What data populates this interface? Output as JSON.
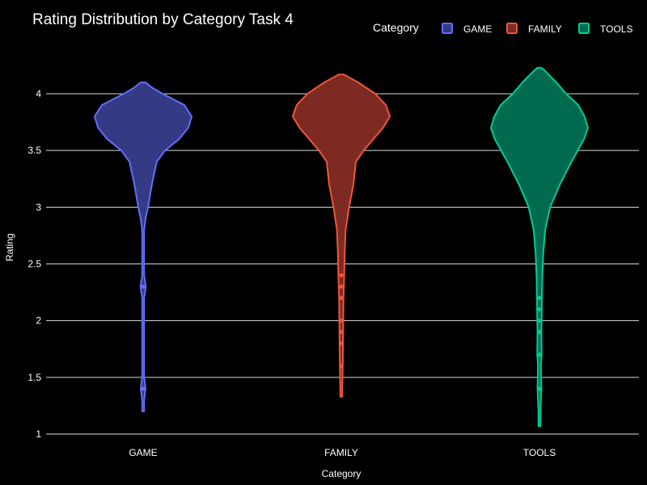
{
  "chart_data": {
    "type": "violin",
    "title": "Rating Distribution by Category Task 4",
    "xlabel": "Category",
    "ylabel": "Rating",
    "ylim": [
      1,
      4.2
    ],
    "yticks": [
      "1",
      "1.5",
      "2",
      "2.5",
      "3",
      "3.5",
      "4"
    ],
    "grid": true,
    "legend": {
      "title": "Category",
      "placement": "top-right"
    },
    "categories": [
      "GAME",
      "FAMILY",
      "TOOLS"
    ],
    "series": [
      {
        "name": "GAME",
        "color": "#636efa",
        "fill": "#353a85",
        "range": [
          1.2,
          4.1
        ],
        "profile": [
          [
            1.2,
            0.01
          ],
          [
            1.3,
            0.015
          ],
          [
            1.4,
            0.05
          ],
          [
            1.5,
            0.02
          ],
          [
            1.7,
            0.008
          ],
          [
            2.0,
            0.008
          ],
          [
            2.2,
            0.02
          ],
          [
            2.3,
            0.055
          ],
          [
            2.4,
            0.02
          ],
          [
            2.6,
            0.01
          ],
          [
            2.8,
            0.02
          ],
          [
            2.9,
            0.05
          ],
          [
            3.0,
            0.1
          ],
          [
            3.2,
            0.18
          ],
          [
            3.4,
            0.28
          ],
          [
            3.5,
            0.45
          ],
          [
            3.6,
            0.74
          ],
          [
            3.7,
            0.93
          ],
          [
            3.8,
            1.0
          ],
          [
            3.9,
            0.85
          ],
          [
            4.0,
            0.4
          ],
          [
            4.05,
            0.2
          ],
          [
            4.1,
            0.05
          ]
        ],
        "points": [
          1.4,
          2.3
        ]
      },
      {
        "name": "FAMILY",
        "color": "#ef553b",
        "fill": "#7d2b22",
        "range": [
          1.33,
          4.17
        ],
        "profile": [
          [
            1.33,
            0.01
          ],
          [
            1.4,
            0.015
          ],
          [
            1.6,
            0.03
          ],
          [
            1.8,
            0.035
          ],
          [
            2.0,
            0.04
          ],
          [
            2.2,
            0.045
          ],
          [
            2.4,
            0.06
          ],
          [
            2.6,
            0.07
          ],
          [
            2.8,
            0.09
          ],
          [
            3.0,
            0.16
          ],
          [
            3.2,
            0.25
          ],
          [
            3.4,
            0.3
          ],
          [
            3.5,
            0.46
          ],
          [
            3.6,
            0.66
          ],
          [
            3.7,
            0.86
          ],
          [
            3.8,
            1.0
          ],
          [
            3.9,
            0.92
          ],
          [
            4.0,
            0.7
          ],
          [
            4.1,
            0.35
          ],
          [
            4.17,
            0.05
          ]
        ],
        "points": [
          1.6,
          1.8,
          1.9,
          2.0,
          2.2,
          2.3,
          2.4
        ]
      },
      {
        "name": "TOOLS",
        "color": "#00cc96",
        "fill": "#006a4f",
        "range": [
          1.07,
          4.23
        ],
        "profile": [
          [
            1.07,
            0.01
          ],
          [
            1.2,
            0.015
          ],
          [
            1.4,
            0.04
          ],
          [
            1.6,
            0.03
          ],
          [
            1.7,
            0.045
          ],
          [
            1.9,
            0.04
          ],
          [
            2.0,
            0.045
          ],
          [
            2.2,
            0.05
          ],
          [
            2.4,
            0.06
          ],
          [
            2.6,
            0.08
          ],
          [
            2.8,
            0.12
          ],
          [
            3.0,
            0.22
          ],
          [
            3.2,
            0.42
          ],
          [
            3.4,
            0.66
          ],
          [
            3.6,
            0.92
          ],
          [
            3.7,
            1.0
          ],
          [
            3.8,
            0.93
          ],
          [
            3.9,
            0.8
          ],
          [
            4.0,
            0.55
          ],
          [
            4.1,
            0.35
          ],
          [
            4.2,
            0.12
          ],
          [
            4.23,
            0.04
          ]
        ],
        "points": [
          1.4,
          1.7,
          1.9,
          2.0,
          2.1,
          2.2
        ]
      }
    ]
  }
}
